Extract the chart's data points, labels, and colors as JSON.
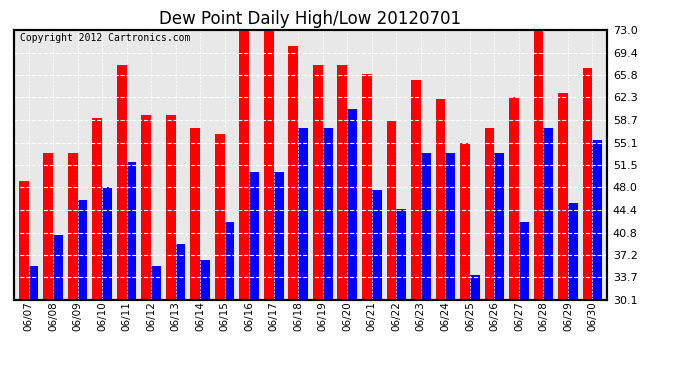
{
  "title": "Dew Point Daily High/Low 20120701",
  "copyright": "Copyright 2012 Cartronics.com",
  "dates": [
    "06/07",
    "06/08",
    "06/09",
    "06/10",
    "06/11",
    "06/12",
    "06/13",
    "06/14",
    "06/15",
    "06/16",
    "06/17",
    "06/18",
    "06/19",
    "06/20",
    "06/21",
    "06/22",
    "06/23",
    "06/24",
    "06/25",
    "06/26",
    "06/27",
    "06/28",
    "06/29",
    "06/30"
  ],
  "high_values": [
    49.0,
    53.5,
    53.5,
    59.0,
    67.5,
    59.5,
    59.5,
    57.5,
    56.5,
    73.0,
    73.0,
    70.5,
    67.5,
    67.5,
    66.0,
    58.5,
    65.0,
    62.0,
    55.0,
    57.5,
    62.3,
    73.0,
    63.0,
    67.0
  ],
  "low_values": [
    35.5,
    40.5,
    46.0,
    48.0,
    52.0,
    35.5,
    39.0,
    36.5,
    42.5,
    50.5,
    50.5,
    57.5,
    57.5,
    60.5,
    47.5,
    44.5,
    53.5,
    53.5,
    34.0,
    53.5,
    42.5,
    57.5,
    45.5,
    55.5
  ],
  "high_color": "#ff0000",
  "low_color": "#0000ff",
  "background_color": "#ffffff",
  "plot_bg_color": "#e8e8e8",
  "grid_color": "#ffffff",
  "ylim_min": 30.1,
  "ylim_max": 73.0,
  "yticks": [
    30.1,
    33.7,
    37.2,
    40.8,
    44.4,
    48.0,
    51.5,
    55.1,
    58.7,
    62.3,
    65.8,
    69.4,
    73.0
  ],
  "title_fontsize": 12,
  "copyright_fontsize": 7,
  "bar_width": 0.4
}
